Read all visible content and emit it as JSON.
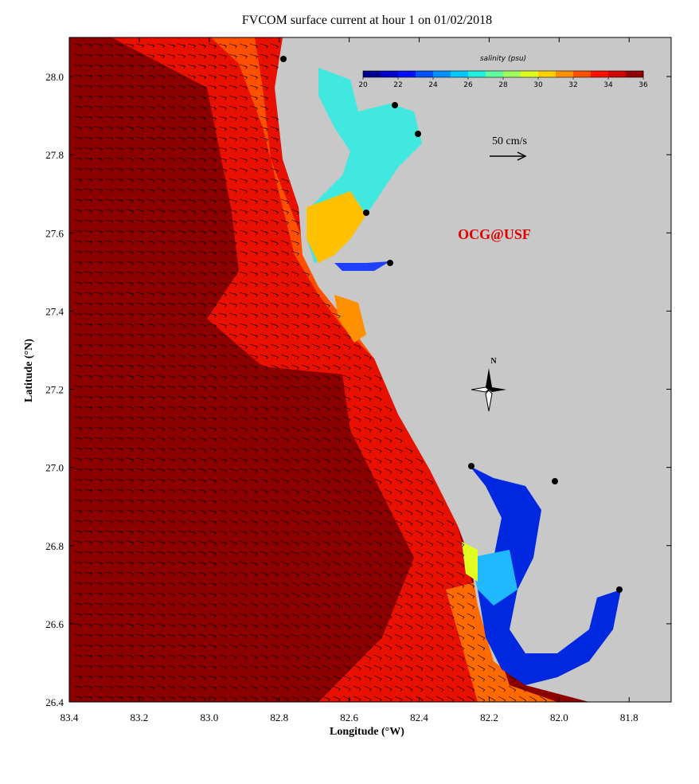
{
  "title": "FVCOM surface current at hour 1 on 01/02/2018",
  "x_label": "Longitude (°W)",
  "y_label": "Latitude (°N)",
  "xlim": [
    83.4,
    81.68
  ],
  "ylim": [
    26.4,
    28.1
  ],
  "xticks": [
    83.4,
    83.2,
    {
      "value": 83,
      "label": "83.0"
    },
    82.8,
    82.6,
    82.4,
    82.2,
    {
      "value": 82,
      "label": "82.0"
    },
    81.8
  ],
  "yticks": [
    {
      "value": 28,
      "label": "28.0"
    },
    27.8,
    27.6,
    27.4,
    27.2,
    {
      "value": 27,
      "label": "27.0"
    },
    26.8,
    26.6,
    26.4
  ],
  "colorbar": {
    "label": "salinity (psu)",
    "lim": [
      20,
      36
    ],
    "ticks": [
      20,
      22,
      24,
      26,
      28,
      30,
      32,
      34,
      36
    ],
    "colors": [
      "#00008f",
      "#0000c8",
      "#0010ff",
      "#0050ff",
      "#0090ff",
      "#00c8ff",
      "#20f0e0",
      "#60ffa0",
      "#a0ff60",
      "#e0ff20",
      "#ffd000",
      "#ff9000",
      "#ff5000",
      "#ff1000",
      "#d00000",
      "#8f0000"
    ]
  },
  "scale_label": "50 cm/s",
  "watermark": "OCG@USF",
  "north_label": "N"
}
